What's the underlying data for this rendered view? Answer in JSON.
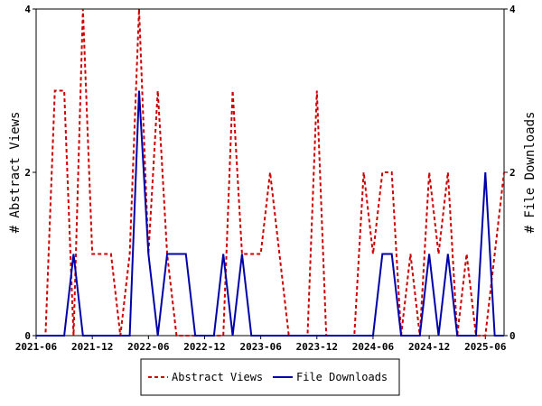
{
  "chart_data": {
    "type": "line",
    "ylabel_left": "# Abstract Views",
    "ylabel_right": "# File Downloads",
    "ylim": [
      0,
      4
    ],
    "yticks": [
      "0",
      "2",
      "4"
    ],
    "xticks": [
      {
        "label": "2021-06",
        "x": "2021-06"
      },
      {
        "label": "2021-12",
        "x": "2021-12"
      },
      {
        "label": "2022-06",
        "x": "2022-06"
      },
      {
        "label": "2022-12",
        "x": "2022-12"
      },
      {
        "label": "2023-06",
        "x": "2023-06"
      },
      {
        "label": "2023-12",
        "x": "2023-12"
      },
      {
        "label": "2024-06",
        "x": "2024-06"
      },
      {
        "label": "2024-12",
        "x": "2024-12"
      },
      {
        "label": "2025-06",
        "x": "2025-06"
      }
    ],
    "x": [
      "2021-06",
      "2021-07",
      "2021-08",
      "2021-09",
      "2021-10",
      "2021-11",
      "2021-12",
      "2022-01",
      "2022-02",
      "2022-03",
      "2022-04",
      "2022-05",
      "2022-06",
      "2022-07",
      "2022-08",
      "2022-09",
      "2022-10",
      "2022-11",
      "2022-12",
      "2023-01",
      "2023-02",
      "2023-03",
      "2023-04",
      "2023-05",
      "2023-06",
      "2023-07",
      "2023-08",
      "2023-09",
      "2023-10",
      "2023-11",
      "2023-12",
      "2024-01",
      "2024-02",
      "2024-03",
      "2024-04",
      "2024-05",
      "2024-06",
      "2024-07",
      "2024-08",
      "2024-09",
      "2024-10",
      "2024-11",
      "2024-12",
      "2025-01",
      "2025-02",
      "2025-03",
      "2025-04",
      "2025-05",
      "2025-06",
      "2025-07",
      "2025-08"
    ],
    "series": [
      {
        "name": "Abstract Views",
        "color": "#cc0000",
        "dash": true,
        "values": [
          0,
          0,
          3,
          3,
          0,
          4,
          1,
          1,
          1,
          0,
          1,
          4,
          1,
          3,
          1,
          0,
          0,
          0,
          0,
          0,
          0,
          3,
          1,
          1,
          1,
          2,
          1,
          0,
          0,
          0,
          3,
          0,
          0,
          0,
          0,
          2,
          1,
          2,
          2,
          0,
          1,
          0,
          2,
          1,
          2,
          0,
          1,
          0,
          0,
          1,
          2
        ]
      },
      {
        "name": "File Downloads",
        "color": "#0000aa",
        "dash": false,
        "values": [
          0,
          0,
          0,
          0,
          1,
          0,
          0,
          0,
          0,
          0,
          0,
          3,
          1,
          0,
          1,
          1,
          1,
          0,
          0,
          0,
          1,
          0,
          1,
          0,
          0,
          0,
          0,
          0,
          0,
          0,
          0,
          0,
          0,
          0,
          0,
          0,
          0,
          1,
          1,
          0,
          0,
          0,
          1,
          0,
          1,
          0,
          0,
          0,
          2,
          0,
          0
        ]
      }
    ],
    "legend_placement": "bottom-center",
    "grid": false
  }
}
